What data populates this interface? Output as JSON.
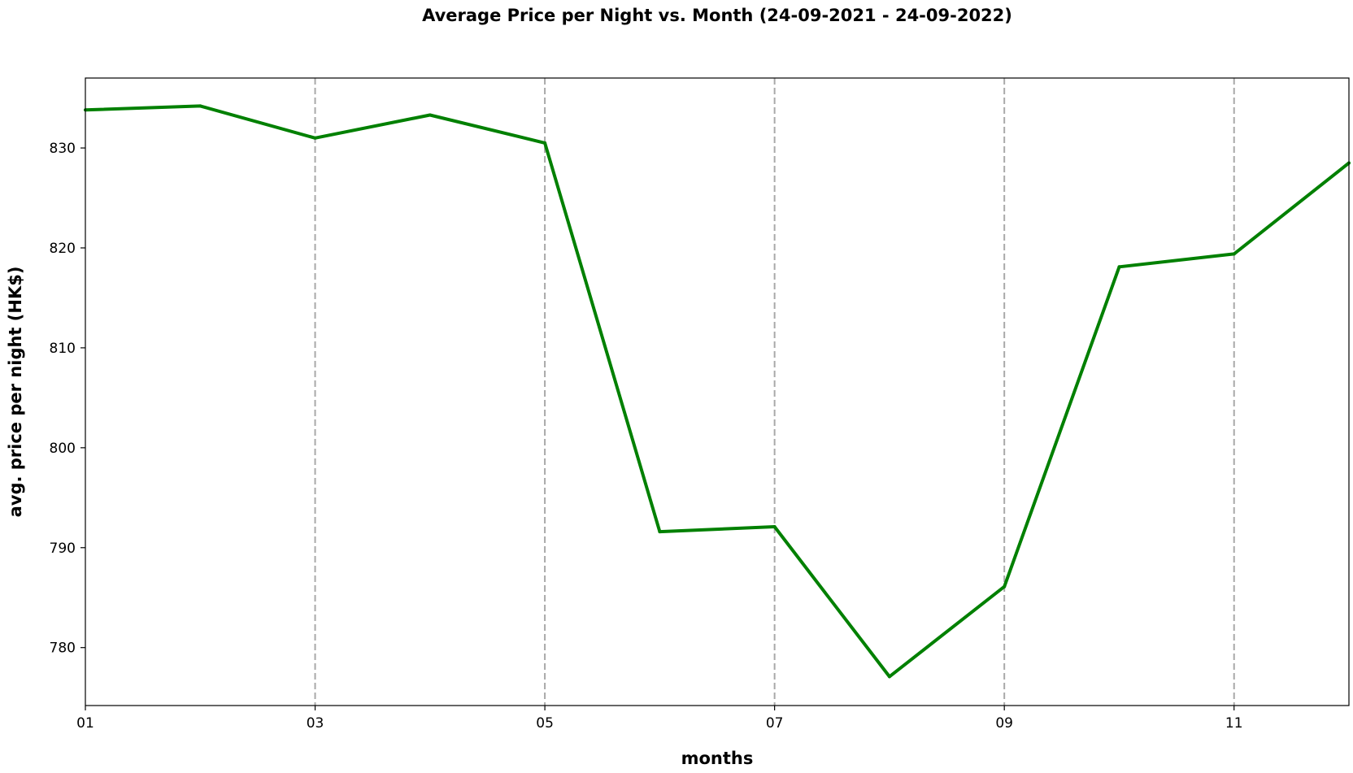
{
  "chart_data": {
    "type": "line",
    "title": "Average Price per Night vs. Month (24-09-2021 - 24-09-2022)",
    "xlabel": "months",
    "ylabel": "avg. price per night (HK$)",
    "x": [
      "01",
      "02",
      "03",
      "04",
      "05",
      "06",
      "07",
      "08",
      "09",
      "10",
      "11",
      "12"
    ],
    "x_ticks": [
      "01",
      "03",
      "05",
      "07",
      "09",
      "11"
    ],
    "y_ticks": [
      780,
      790,
      800,
      810,
      820,
      830
    ],
    "ylim": [
      774.2,
      837.0
    ],
    "grid": "vertical dashed at x ticks",
    "series": [
      {
        "values": [
          833.8,
          834.2,
          831.0,
          833.3,
          830.5,
          791.6,
          792.1,
          777.1,
          786.1,
          818.1,
          819.4,
          828.5
        ],
        "color": "#008000"
      }
    ]
  }
}
